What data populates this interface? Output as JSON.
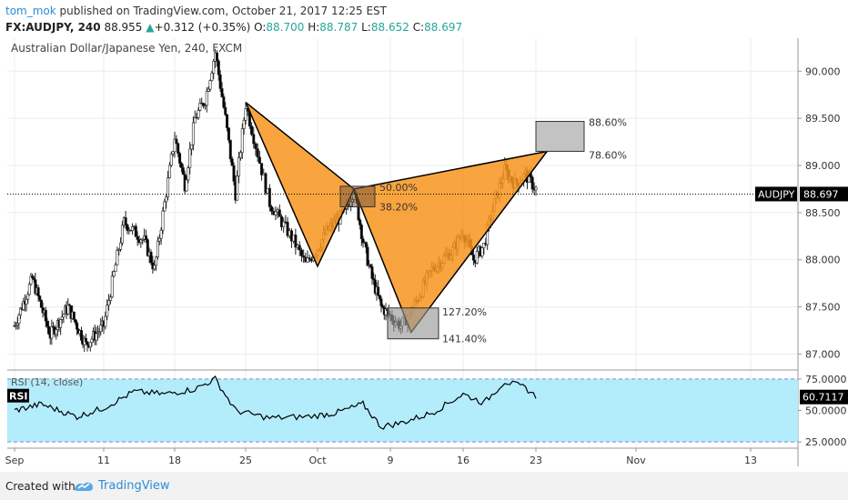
{
  "header": {
    "author": "tom_mok",
    "published_text": "published on TradingView.com, October 21, 2017 12:25 EST",
    "symbol_line": "FX:AUDJPY, 240",
    "last": "88.955",
    "change_arrow": "▲",
    "change": "+0.312 (+0.35%)",
    "open_label": "O:",
    "open": "88.700",
    "high_label": "H:",
    "high": "88.787",
    "low_label": "L:",
    "low": "88.652",
    "close_label": "C:",
    "close": "88.697"
  },
  "chart_data": {
    "type": "candlestick",
    "title": "Australian Dollar/Japanese Yen, 240, FXCM",
    "x_ticks": [
      "Sep",
      "11",
      "18",
      "25",
      "Oct",
      "9",
      "16",
      "23",
      "Nov",
      "13"
    ],
    "y_ticks": [
      "90.000",
      "89.500",
      "89.000",
      "88.500",
      "88.000",
      "87.500",
      "87.000"
    ],
    "ylim": [
      86.85,
      90.35
    ],
    "current_price": {
      "label": "AUDJPY",
      "value": 88.697,
      "text": "88.697"
    },
    "price_path": [
      [
        "Sep",
        87.3
      ],
      [
        "Sep 3",
        87.8
      ],
      [
        "Sep 5",
        87.2
      ],
      [
        "Sep 7",
        87.5
      ],
      [
        "Sep 9",
        87.1
      ],
      [
        "Sep 11",
        87.3
      ],
      [
        "Sep 13",
        88.4
      ],
      [
        "Sep 15",
        88.2
      ],
      [
        "Sep 16",
        87.9
      ],
      [
        "Sep 18",
        89.3
      ],
      [
        "Sep 19",
        88.8
      ],
      [
        "Sep 20",
        89.5
      ],
      [
        "Sep 21",
        89.7
      ],
      [
        "Sep 22",
        90.2
      ],
      [
        "Sep 23",
        89.5
      ],
      [
        "Sep 24",
        88.7
      ],
      [
        "Sep 25",
        89.65
      ],
      [
        "Sep 27",
        88.6
      ],
      [
        "Sep 29",
        88.2
      ],
      [
        "Sep 30",
        87.95
      ],
      [
        "Oct 2",
        88.3
      ],
      [
        "Oct 4",
        88.5
      ],
      [
        "Oct 5",
        88.75
      ],
      [
        "Oct 6",
        88.2
      ],
      [
        "Oct 7",
        87.8
      ],
      [
        "Oct 8",
        87.5
      ],
      [
        "Oct 10",
        87.3
      ],
      [
        "Oct 11",
        87.45
      ],
      [
        "Oct 13",
        87.9
      ],
      [
        "Oct 15",
        88.1
      ],
      [
        "Oct 16",
        88.3
      ],
      [
        "Oct 17",
        88.0
      ],
      [
        "Oct 18",
        88.15
      ],
      [
        "Oct 19",
        88.6
      ],
      [
        "Oct 20",
        88.95
      ],
      [
        "Oct 21",
        88.8
      ],
      [
        "Oct 22",
        88.9
      ],
      [
        "Oct 23",
        88.75
      ]
    ],
    "pattern": {
      "points": [
        {
          "x": "Sep 25",
          "y": 89.67
        },
        {
          "x": "Oct 1",
          "y": 87.93
        },
        {
          "x": "Oct 5",
          "y": 88.75
        },
        {
          "x": "Oct 11",
          "y": 87.23
        },
        {
          "x": "Oct 24",
          "y": 89.15
        }
      ],
      "fill_color": "#f7941d",
      "levels": [
        {
          "label": "50.00%",
          "value": 88.76
        },
        {
          "label": "38.20%",
          "value": 88.6
        },
        {
          "label": "127.20%",
          "value": 87.45
        },
        {
          "label": "141.40%",
          "value": 87.2
        },
        {
          "label": "88.60%",
          "value": 89.4
        },
        {
          "label": "78.60%",
          "value": 89.15
        }
      ]
    },
    "rsi": {
      "title": "RSI (14, close)",
      "label": "RSI",
      "current_text": "60.7117",
      "y_ticks": [
        "75.0000",
        "50.0000",
        "25.0000"
      ],
      "ylim": [
        20,
        80
      ],
      "band": [
        25,
        75
      ],
      "values": [
        [
          "Sep",
          50
        ],
        [
          "Sep 4",
          55
        ],
        [
          "Sep 8",
          45
        ],
        [
          "Sep 11",
          52
        ],
        [
          "Sep 14",
          65
        ],
        [
          "Sep 17",
          63
        ],
        [
          "Sep 20",
          67
        ],
        [
          "Sep 22",
          75
        ],
        [
          "Sep 24",
          50
        ],
        [
          "Sep 27",
          44
        ],
        [
          "Sep 30",
          45
        ],
        [
          "Oct 3",
          48
        ],
        [
          "Oct 6",
          55
        ],
        [
          "Oct 8",
          37
        ],
        [
          "Oct 10",
          40
        ],
        [
          "Oct 13",
          48
        ],
        [
          "Oct 16",
          63
        ],
        [
          "Oct 18",
          56
        ],
        [
          "Oct 20",
          73
        ],
        [
          "Oct 22",
          68
        ],
        [
          "Oct 23",
          61
        ]
      ],
      "colors": {
        "band_fill": "#b3ecfb",
        "line": "#000000"
      }
    },
    "colors": {
      "up": "#3c3c3c",
      "down": "#000000",
      "price_label_bg": "#000000"
    }
  },
  "footer": {
    "created_text": "Created with",
    "brand_text": "TradingView"
  }
}
